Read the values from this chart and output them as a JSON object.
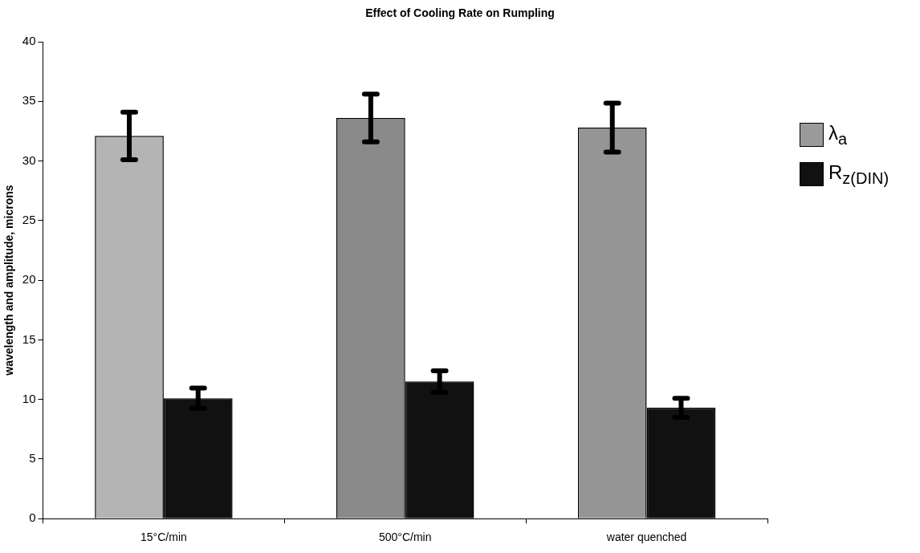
{
  "chart_data": {
    "type": "bar",
    "title": "Effect of Cooling Rate on Rumpling",
    "ylabel": "wavelength and amplitude, microns",
    "categories": [
      "15°C/min",
      "500°C/min",
      "water quenched"
    ],
    "series": [
      {
        "name": "λ$_{a}$",
        "color": "#9a9a9a",
        "colors": [
          "#b4b4b4",
          "#8a8a8a",
          "#959595"
        ],
        "values": [
          32.1,
          33.6,
          32.8
        ],
        "errors": [
          2.0,
          2.0,
          2.05
        ]
      },
      {
        "name": "R$_{z(DIN)}$",
        "color": "#111111",
        "values": [
          10.1,
          11.5,
          9.3
        ],
        "errors": [
          0.85,
          0.9,
          0.8
        ]
      }
    ],
    "ylim": [
      0,
      40
    ],
    "yticks": [
      0,
      5,
      10,
      15,
      20,
      25,
      30,
      35,
      40
    ],
    "grid": false,
    "legend": "right"
  }
}
